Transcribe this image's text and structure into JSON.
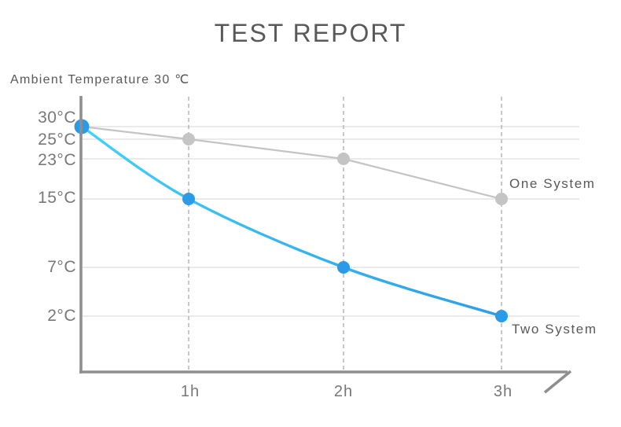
{
  "chart_data": {
    "type": "line",
    "title": "TEST REPORT",
    "subtitle": "Ambient Temperature 30 ℃",
    "x_values": [
      0,
      1,
      2,
      3
    ],
    "x_unit": "h",
    "x_tick_labels": [
      "1h",
      "2h",
      "3h"
    ],
    "y_tick_labels": [
      "30°C",
      "25°C",
      "23°C",
      "15°C",
      "7°C",
      "2°C"
    ],
    "y_tick_values": [
      30,
      25,
      23,
      15,
      7,
      2
    ],
    "y_scale": "nonlinear-decorative (ticks positioned as drawn)",
    "grid": {
      "horizontal_solid": true,
      "vertical_dashed_at_hours": [
        1,
        2,
        3
      ]
    },
    "axis_arrow": "x-axis-end",
    "legend_position": "right-of-last-point",
    "series": [
      {
        "name": "One System",
        "values": [
          30,
          25,
          23,
          15
        ],
        "line_style": "straight",
        "color": "#c4c4c4",
        "dot_color": "#c4c4c4"
      },
      {
        "name": "Two System",
        "values": [
          30,
          15,
          7,
          2
        ],
        "line_style": "smooth",
        "color_gradient": [
          "#41d3f6",
          "#2e9ee9"
        ],
        "dot_color": "#2b9ae7"
      }
    ]
  },
  "colors": {
    "background": "#ffffff",
    "axis": "#8f8f8f",
    "gridline": "#e7e7e7",
    "dashed_guide": "#b5b5b5",
    "heading_text": "#595959",
    "tick_text": "#787878"
  }
}
